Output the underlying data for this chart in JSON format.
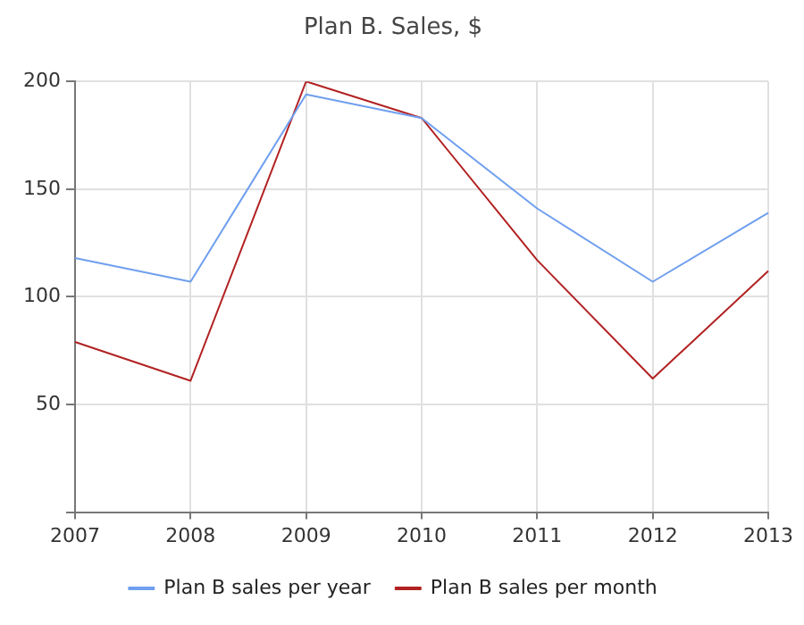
{
  "chart_data": {
    "type": "line",
    "title": "Plan B. Sales, $",
    "categories": [
      "2007",
      "2008",
      "2009",
      "2010",
      "2011",
      "2012",
      "2013"
    ],
    "series": [
      {
        "name": "Plan B sales per year",
        "color": "#6f9fef",
        "values": [
          118,
          107,
          194,
          183,
          141,
          107,
          139
        ]
      },
      {
        "name": "Plan B sales per month",
        "color": "#b22222",
        "values": [
          79,
          61,
          200,
          183,
          117,
          62,
          112
        ]
      }
    ],
    "ylim": [
      0,
      200
    ],
    "yticks": [
      {
        "value": 0,
        "label": null
      },
      50,
      100,
      150,
      200
    ],
    "grid": true,
    "legend": "bottom",
    "marker": "none",
    "line_style": "solid"
  }
}
